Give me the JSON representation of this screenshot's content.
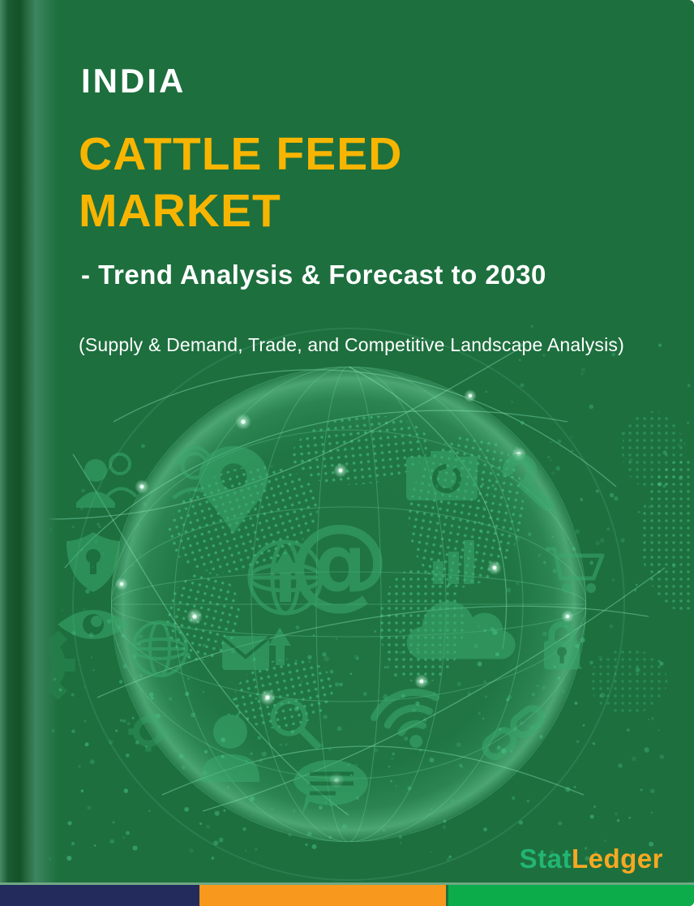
{
  "cover": {
    "region": "INDIA",
    "title_line1": "CATTLE FEED",
    "title_line2": "MARKET",
    "subtitle": "- Trend Analysis & Forecast to 2030",
    "tagline": "(Supply & Demand, Trade, and Competitive Landscape Analysis)",
    "brand": {
      "part1": "Stat",
      "part2": "Ledger"
    }
  },
  "colors": {
    "cover_green": "#1D6F3E",
    "title_yellow": "#F8B500",
    "text_white": "#FFFFFF",
    "brand_green": "#22B573",
    "brand_orange": "#F7A821",
    "stripe_navy": "#232A5C",
    "stripe_orange": "#F8991D",
    "stripe_green": "#0CAC4B",
    "graphic_green": "#3BAA6E"
  },
  "graphic_icons": [
    "users-icon",
    "headset-person-icon",
    "location-pin-icon",
    "camera-icon",
    "wrench-icon",
    "at-symbol-icon",
    "globe-arrow-icon",
    "bar-chart-icon",
    "shopping-cart-icon",
    "shield-keyhole-icon",
    "eye-icon",
    "wireframe-globe-icon",
    "gear-icon",
    "mail-upload-icon",
    "person-bust-icon",
    "magnifier-icon",
    "wifi-icon",
    "cloud-icon",
    "lock-icon",
    "chain-link-icon",
    "chat-bubble-icon"
  ]
}
